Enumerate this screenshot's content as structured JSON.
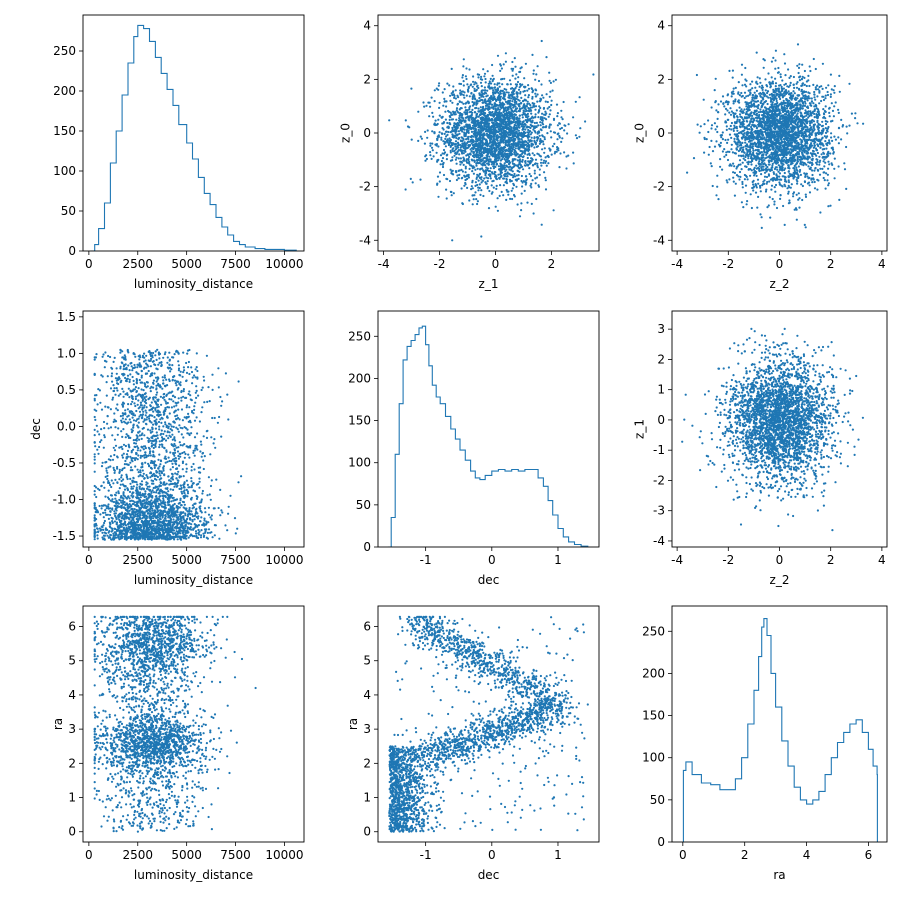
{
  "colors": {
    "series": "#1f77b4"
  },
  "chart_data": [
    {
      "type": "histogram",
      "row": 0,
      "col": 0,
      "xlabel": "luminosity_distance",
      "ylabel": "",
      "xlim": [
        -300,
        11000
      ],
      "ylim": [
        0,
        295
      ],
      "xticks": [
        0,
        2500,
        5000,
        7500,
        10000
      ],
      "yticks": [
        0,
        50,
        100,
        150,
        200,
        250
      ],
      "curve": [
        [
          100,
          0
        ],
        [
          300,
          8
        ],
        [
          500,
          28
        ],
        [
          800,
          60
        ],
        [
          1100,
          110
        ],
        [
          1400,
          150
        ],
        [
          1700,
          195
        ],
        [
          2000,
          235
        ],
        [
          2300,
          268
        ],
        [
          2500,
          282
        ],
        [
          2800,
          278
        ],
        [
          3100,
          262
        ],
        [
          3400,
          242
        ],
        [
          3700,
          222
        ],
        [
          4000,
          202
        ],
        [
          4300,
          182
        ],
        [
          4600,
          158
        ],
        [
          5000,
          135
        ],
        [
          5300,
          115
        ],
        [
          5600,
          92
        ],
        [
          5900,
          72
        ],
        [
          6200,
          58
        ],
        [
          6500,
          42
        ],
        [
          6800,
          30
        ],
        [
          7100,
          20
        ],
        [
          7400,
          12
        ],
        [
          7700,
          8
        ],
        [
          8000,
          5
        ],
        [
          8500,
          3
        ],
        [
          9000,
          2
        ],
        [
          10000,
          1
        ],
        [
          10600,
          0
        ]
      ]
    },
    {
      "type": "scatter",
      "row": 0,
      "col": 1,
      "xlabel": "z_1",
      "ylabel": "z_0",
      "xlim": [
        -4.2,
        3.7
      ],
      "ylim": [
        -4.4,
        4.4
      ],
      "xticks": [
        -4,
        -2,
        0,
        2
      ],
      "yticks": [
        -4,
        -2,
        0,
        2,
        4
      ],
      "cloud": {
        "kind": "gaussian",
        "x_mean": 0,
        "x_sd": 1,
        "y_mean": 0,
        "y_sd": 1,
        "x_range": [
          -3.8,
          3.5
        ],
        "y_range": [
          -4.0,
          4.0
        ]
      },
      "n_points": 3000
    },
    {
      "type": "scatter",
      "row": 0,
      "col": 2,
      "xlabel": "z_2",
      "ylabel": "z_0",
      "xlim": [
        -4.2,
        4.2
      ],
      "ylim": [
        -4.4,
        4.4
      ],
      "xticks": [
        -4,
        -2,
        0,
        2,
        4
      ],
      "yticks": [
        -4,
        -2,
        0,
        2,
        4
      ],
      "cloud": {
        "kind": "gaussian",
        "x_mean": 0,
        "x_sd": 1,
        "y_mean": 0,
        "y_sd": 1,
        "x_range": [
          -3.8,
          3.8
        ],
        "y_range": [
          -4.0,
          4.0
        ]
      },
      "n_points": 3000
    },
    {
      "type": "scatter",
      "row": 1,
      "col": 0,
      "xlabel": "luminosity_distance",
      "ylabel": "dec",
      "xlim": [
        -300,
        11000
      ],
      "ylim": [
        -1.65,
        1.58
      ],
      "xticks": [
        0,
        2500,
        5000,
        7500,
        10000
      ],
      "yticks": [
        -1.5,
        -1.0,
        -0.5,
        0.0,
        0.5,
        1.0,
        1.5
      ],
      "cloud": {
        "kind": "dist_vs_dec",
        "x_range": [
          300,
          10600
        ],
        "y_range": [
          -1.55,
          1.5
        ]
      },
      "n_points": 3000
    },
    {
      "type": "histogram",
      "row": 1,
      "col": 1,
      "xlabel": "dec",
      "ylabel": "",
      "xlim": [
        -1.72,
        1.62
      ],
      "ylim": [
        0,
        280
      ],
      "xticks": [
        -1,
        0,
        1
      ],
      "yticks": [
        0,
        50,
        100,
        150,
        200,
        250
      ],
      "curve": [
        [
          -1.57,
          0
        ],
        [
          -1.52,
          35
        ],
        [
          -1.46,
          110
        ],
        [
          -1.4,
          170
        ],
        [
          -1.34,
          222
        ],
        [
          -1.28,
          238
        ],
        [
          -1.22,
          245
        ],
        [
          -1.16,
          252
        ],
        [
          -1.1,
          260
        ],
        [
          -1.05,
          262
        ],
        [
          -1.0,
          240
        ],
        [
          -0.95,
          215
        ],
        [
          -0.9,
          192
        ],
        [
          -0.84,
          178
        ],
        [
          -0.78,
          170
        ],
        [
          -0.7,
          155
        ],
        [
          -0.62,
          140
        ],
        [
          -0.55,
          128
        ],
        [
          -0.48,
          115
        ],
        [
          -0.4,
          103
        ],
        [
          -0.32,
          90
        ],
        [
          -0.25,
          82
        ],
        [
          -0.18,
          80
        ],
        [
          -0.1,
          85
        ],
        [
          0.0,
          90
        ],
        [
          0.1,
          92
        ],
        [
          0.2,
          90
        ],
        [
          0.3,
          92
        ],
        [
          0.4,
          90
        ],
        [
          0.5,
          92
        ],
        [
          0.6,
          92
        ],
        [
          0.7,
          82
        ],
        [
          0.78,
          72
        ],
        [
          0.85,
          55
        ],
        [
          0.92,
          38
        ],
        [
          1.0,
          22
        ],
        [
          1.08,
          12
        ],
        [
          1.16,
          6
        ],
        [
          1.25,
          3
        ],
        [
          1.35,
          1
        ],
        [
          1.45,
          0
        ]
      ]
    },
    {
      "type": "scatter",
      "row": 1,
      "col": 2,
      "xlabel": "z_2",
      "ylabel": "z_1",
      "xlim": [
        -4.2,
        4.2
      ],
      "ylim": [
        -4.2,
        3.6
      ],
      "xticks": [
        -4,
        -2,
        0,
        2,
        4
      ],
      "yticks": [
        -4,
        -3,
        -2,
        -1,
        0,
        1,
        2,
        3
      ],
      "cloud": {
        "kind": "gaussian",
        "x_mean": 0,
        "x_sd": 1,
        "y_mean": 0,
        "y_sd": 1,
        "x_range": [
          -3.8,
          3.8
        ],
        "y_range": [
          -3.8,
          3.4
        ]
      },
      "n_points": 3000
    },
    {
      "type": "scatter",
      "row": 2,
      "col": 0,
      "xlabel": "luminosity_distance",
      "ylabel": "ra",
      "xlim": [
        -300,
        11000
      ],
      "ylim": [
        -0.3,
        6.6
      ],
      "xticks": [
        0,
        2500,
        5000,
        7500,
        10000
      ],
      "yticks": [
        0,
        1,
        2,
        3,
        4,
        5,
        6
      ],
      "cloud": {
        "kind": "dist_vs_ra",
        "x_range": [
          300,
          10600
        ],
        "y_range": [
          0,
          6.28
        ]
      },
      "n_points": 3000
    },
    {
      "type": "scatter",
      "row": 2,
      "col": 1,
      "xlabel": "dec",
      "ylabel": "ra",
      "xlim": [
        -1.72,
        1.62
      ],
      "ylim": [
        -0.3,
        6.6
      ],
      "xticks": [
        -1,
        0,
        1
      ],
      "yticks": [
        0,
        1,
        2,
        3,
        4,
        5,
        6
      ],
      "cloud": {
        "kind": "dec_vs_ra",
        "x_range": [
          -1.55,
          1.45
        ],
        "y_range": [
          0,
          6.28
        ]
      },
      "n_points": 3000
    },
    {
      "type": "histogram",
      "row": 2,
      "col": 2,
      "xlabel": "ra",
      "ylabel": "",
      "xlim": [
        -0.35,
        6.6
      ],
      "ylim": [
        0,
        280
      ],
      "xticks": [
        0,
        2,
        4,
        6
      ],
      "yticks": [
        0,
        50,
        100,
        150,
        200,
        250
      ],
      "curve": [
        [
          0.0,
          0
        ],
        [
          0.02,
          85
        ],
        [
          0.1,
          95
        ],
        [
          0.3,
          80
        ],
        [
          0.6,
          70
        ],
        [
          0.9,
          68
        ],
        [
          1.2,
          62
        ],
        [
          1.5,
          62
        ],
        [
          1.7,
          75
        ],
        [
          1.9,
          100
        ],
        [
          2.1,
          140
        ],
        [
          2.3,
          180
        ],
        [
          2.45,
          220
        ],
        [
          2.55,
          255
        ],
        [
          2.62,
          265
        ],
        [
          2.72,
          245
        ],
        [
          2.85,
          200
        ],
        [
          3.0,
          160
        ],
        [
          3.2,
          120
        ],
        [
          3.4,
          90
        ],
        [
          3.6,
          65
        ],
        [
          3.8,
          50
        ],
        [
          4.0,
          45
        ],
        [
          4.2,
          50
        ],
        [
          4.4,
          60
        ],
        [
          4.6,
          80
        ],
        [
          4.8,
          100
        ],
        [
          5.0,
          118
        ],
        [
          5.2,
          130
        ],
        [
          5.4,
          140
        ],
        [
          5.6,
          145
        ],
        [
          5.8,
          130
        ],
        [
          6.0,
          110
        ],
        [
          6.15,
          90
        ],
        [
          6.28,
          80
        ],
        [
          6.29,
          0
        ]
      ]
    }
  ]
}
